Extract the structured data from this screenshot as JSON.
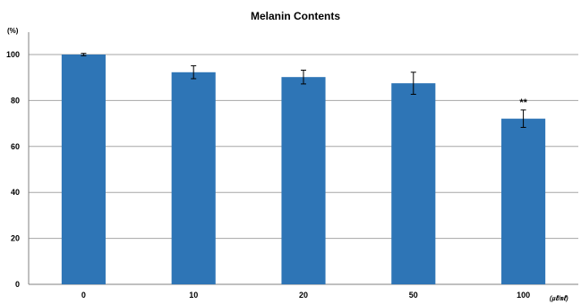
{
  "chart_data": {
    "type": "bar",
    "title": "Melanin Contents",
    "y_unit": "(%)",
    "x_unit": "(㎕/㎖)",
    "categories": [
      "0",
      "10",
      "20",
      "50",
      "100"
    ],
    "values": [
      100,
      92.3,
      90.2,
      87.5,
      72.1
    ],
    "error": [
      0.5,
      2.8,
      3.0,
      4.8,
      3.8
    ],
    "annotations": [
      {
        "category": "100",
        "text": "**"
      }
    ],
    "ylim": [
      0,
      100
    ],
    "yticks": [
      0,
      20,
      40,
      60,
      80,
      100
    ],
    "grid": true,
    "bar_color": "#2e75b6",
    "grid_color": "#a6a6a6"
  }
}
